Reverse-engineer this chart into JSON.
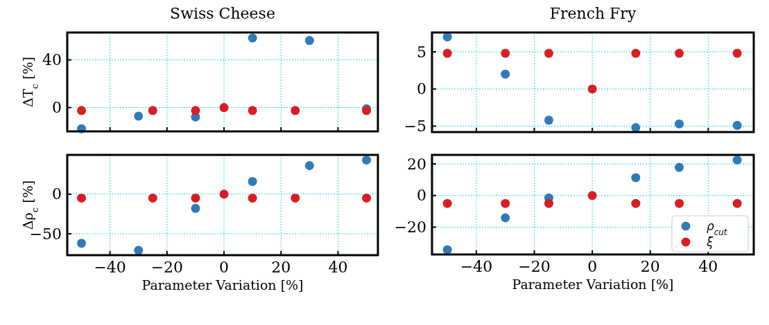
{
  "chart_data": [
    {
      "type": "scatter",
      "title": "Swiss Cheese",
      "ylabel": "ΔT$_{c}$ [%]",
      "xlim": [
        -55,
        54
      ],
      "ylim": [
        -20,
        63
      ],
      "xticks": [
        -40,
        -20,
        0,
        20,
        40
      ],
      "yticks": [
        0,
        40
      ],
      "tick_labels": "y",
      "grid": true,
      "marker": "circle",
      "series": [
        {
          "color": "#2f7bb8",
          "x": [
            -50,
            -30,
            -10,
            10,
            30,
            50
          ],
          "values": [
            -17.8,
            -7.2,
            -7.9,
            58.4,
            56.3,
            -1
          ]
        },
        {
          "color": "#d81e22",
          "x": [
            -50,
            -25,
            -10,
            0,
            10,
            25,
            50
          ],
          "values": [
            -2.5,
            -2.5,
            -2.5,
            0,
            -2.5,
            -2.5,
            -2.5
          ]
        }
      ]
    },
    {
      "type": "scatter",
      "xlabel": "Parameter Variation [%]",
      "ylabel": "Δρ$_{c}$ [%]",
      "xlim": [
        -55,
        54
      ],
      "ylim": [
        -77,
        49.5
      ],
      "xticks": [
        -40,
        -20,
        0,
        20,
        40
      ],
      "yticks": [
        -50,
        0
      ],
      "grid": true,
      "marker": "circle",
      "series": [
        {
          "color": "#2f7bb8",
          "x": [
            -50,
            -30,
            -10,
            10,
            30,
            50
          ],
          "values": [
            -62,
            -71,
            -18,
            16,
            36,
            43
          ]
        },
        {
          "color": "#d81e22",
          "x": [
            -50,
            -25,
            -10,
            0,
            10,
            25,
            50
          ],
          "values": [
            -5,
            -5,
            -5,
            0,
            -5,
            -5,
            -5
          ]
        }
      ]
    },
    {
      "type": "scatter",
      "title": "French Fry",
      "xlim": [
        -55.3,
        55.7
      ],
      "ylim": [
        -5.8,
        7.6
      ],
      "xticks": [
        -40,
        -20,
        0,
        20,
        40
      ],
      "yticks": [
        -5,
        0,
        5
      ],
      "tick_labels": "y",
      "grid": true,
      "marker": "circle",
      "series": [
        {
          "color": "#2f7bb8",
          "x": [
            -50,
            -30,
            -15,
            15,
            30,
            50
          ],
          "values": [
            7,
            2,
            -4.2,
            -5.2,
            -4.7,
            -4.9
          ]
        },
        {
          "color": "#d81e22",
          "x": [
            -50,
            -30,
            -15,
            0,
            15,
            30,
            50
          ],
          "values": [
            4.8,
            4.8,
            4.8,
            0,
            4.8,
            4.8,
            4.8
          ]
        }
      ]
    },
    {
      "type": "scatter",
      "xlabel": "Parameter Variation [%]",
      "xlim": [
        -55.3,
        55.7
      ],
      "ylim": [
        -37.3,
        25.7
      ],
      "xticks": [
        -40,
        -20,
        0,
        20,
        40
      ],
      "yticks": [
        -20,
        0,
        20
      ],
      "grid": true,
      "marker": "circle",
      "legend": "bottom right",
      "series": [
        {
          "name": "ρ$_{cut}$",
          "color": "#2f7bb8",
          "x": [
            -50,
            -30,
            -15,
            15,
            30,
            50
          ],
          "values": [
            -34.3,
            -14.1,
            -1.5,
            11.3,
            17.8,
            22.5
          ]
        },
        {
          "name": "ξ",
          "color": "#d81e22",
          "x": [
            -50,
            -30,
            -15,
            0,
            15,
            30,
            50
          ],
          "values": [
            -5,
            -5,
            -5,
            0,
            -5,
            -5,
            -5
          ]
        }
      ]
    }
  ]
}
